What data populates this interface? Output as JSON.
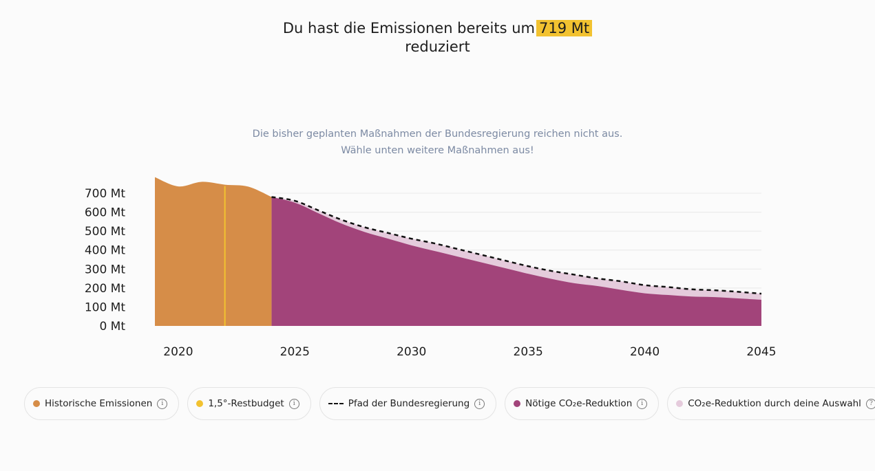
{
  "header": {
    "title_prefix": "Du hast die Emissionen bereits um",
    "title_highlight": "719 Mt",
    "title_suffix": "reduziert",
    "subtitle_line1": "Die bisher geplanten Maßnahmen der Bundesregierung reichen nicht aus.",
    "subtitle_line2": "Wähle unten weitere Maßnahmen aus!"
  },
  "colors": {
    "historic": "#d68d48",
    "budget": "#f2c230",
    "needed": "#a2447a",
    "selection": "#e5cbdc",
    "government": "#111111",
    "grid": "#e8e8e8"
  },
  "chart_data": {
    "type": "area",
    "title": "",
    "xlabel": "",
    "ylabel": "",
    "xlim": [
      2019,
      2045
    ],
    "ylim": [
      0,
      700
    ],
    "x_ticks": [
      2020,
      2025,
      2030,
      2035,
      2040,
      2045
    ],
    "x_tick_labels": [
      "2020",
      "2025",
      "2030",
      "2035",
      "2040",
      "2045"
    ],
    "y_ticks": [
      0,
      100,
      200,
      300,
      400,
      500,
      600,
      700
    ],
    "y_tick_labels": [
      "0 Mt",
      "100 Mt",
      "200 Mt",
      "300 Mt",
      "400 Mt",
      "500 Mt",
      "600 Mt",
      "700 Mt"
    ],
    "budget_marker_year": 2022,
    "series": [
      {
        "name": "Historische Emissionen",
        "kind": "area",
        "x": [
          2019,
          2020,
          2021,
          2022,
          2023,
          2024
        ],
        "y": [
          785,
          736,
          760,
          745,
          735,
          680
        ]
      },
      {
        "name": "Pfad der Bundesregierung",
        "kind": "dashed-line",
        "x": [
          2024,
          2025,
          2026,
          2027,
          2028,
          2029,
          2030,
          2031,
          2032,
          2033,
          2034,
          2035,
          2036,
          2037,
          2038,
          2039,
          2040,
          2041,
          2042,
          2043,
          2044,
          2045
        ],
        "y": [
          680,
          660,
          610,
          560,
          520,
          490,
          460,
          435,
          405,
          375,
          345,
          315,
          290,
          270,
          250,
          235,
          215,
          205,
          193,
          188,
          180,
          170
        ]
      },
      {
        "name": "Nötige CO₂e-Reduktion",
        "kind": "area",
        "x": [
          2024,
          2025,
          2026,
          2027,
          2028,
          2029,
          2030,
          2031,
          2032,
          2033,
          2034,
          2035,
          2036,
          2037,
          2038,
          2039,
          2040,
          2041,
          2042,
          2043,
          2044,
          2045
        ],
        "y": [
          680,
          650,
          595,
          540,
          495,
          460,
          425,
          395,
          365,
          335,
          305,
          275,
          248,
          225,
          210,
          190,
          172,
          163,
          155,
          152,
          145,
          138
        ]
      }
    ]
  },
  "legend": [
    {
      "label": "Historische Emissionen",
      "marker": "dot",
      "color": "#d68d48",
      "icon": "info-icon"
    },
    {
      "label": "1,5°-Restbudget",
      "marker": "dot",
      "color": "#f2c230",
      "icon": "info-icon"
    },
    {
      "label": "Pfad der Bundesregierung",
      "marker": "dash",
      "color": "#111111",
      "icon": "info-icon"
    },
    {
      "label": "Nötige CO₂e-Reduktion",
      "marker": "dot",
      "color": "#a2447a",
      "icon": "info-icon"
    },
    {
      "label": "CO₂e-Reduktion durch deine Auswahl",
      "marker": "dot",
      "color": "#e5cbdc",
      "icon": "question-icon"
    }
  ],
  "icons": {
    "info_glyph": "i",
    "question_glyph": "?"
  }
}
